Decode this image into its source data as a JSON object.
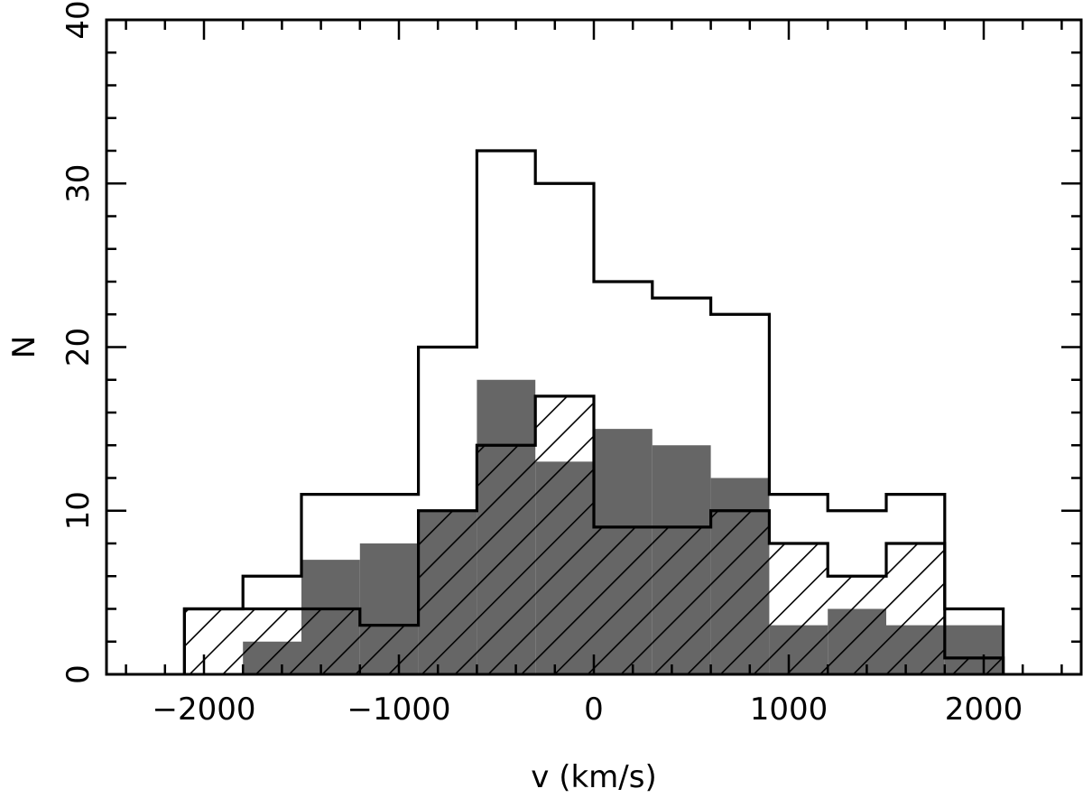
{
  "chart_data": {
    "type": "histogram",
    "xlabel": "v (km/s)",
    "ylabel": "N",
    "xlim": [
      -2500,
      2500
    ],
    "ylim": [
      0,
      40
    ],
    "x_ticks": [
      -2000,
      -1000,
      0,
      1000,
      2000
    ],
    "x_tick_labels": [
      "−2000",
      "−1000",
      "0",
      "1000",
      "2000"
    ],
    "y_ticks": [
      0,
      10,
      20,
      30,
      40
    ],
    "y_tick_labels": [
      "0",
      "10",
      "20",
      "30",
      "40"
    ],
    "grid": false,
    "bin_edges": [
      -2100,
      -1800,
      -1500,
      -1200,
      -900,
      -600,
      -300,
      0,
      300,
      600,
      900,
      1200,
      1500,
      1800,
      2100
    ],
    "series": [
      {
        "style": "outline",
        "values": [
          4,
          6,
          11,
          11,
          20,
          32,
          30,
          24,
          23,
          22,
          11,
          10,
          11,
          4
        ]
      },
      {
        "style": "filled-gray",
        "color": "#666666",
        "values": [
          0,
          2,
          7,
          8,
          10,
          18,
          13,
          15,
          14,
          12,
          3,
          4,
          3,
          3
        ]
      },
      {
        "style": "hatched",
        "values": [
          4,
          4,
          4,
          3,
          10,
          14,
          17,
          9,
          9,
          10,
          8,
          6,
          8,
          1
        ]
      }
    ]
  }
}
